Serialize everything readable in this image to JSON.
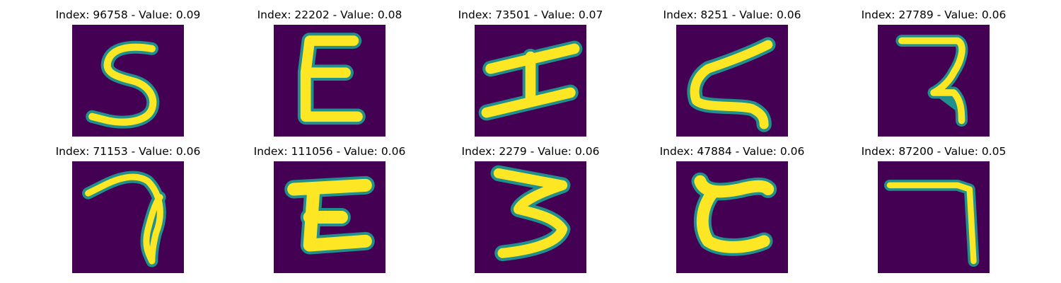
{
  "panels": [
    {
      "title": "Index: 96758 - Value: 0.09",
      "glyph": "five-like"
    },
    {
      "title": "Index: 22202 - Value: 0.08",
      "glyph": "epsilon-like"
    },
    {
      "title": "Index: 73501 - Value: 0.07",
      "glyph": "i-beam-like"
    },
    {
      "title": "Index: 8251 - Value: 0.06",
      "glyph": "z-like"
    },
    {
      "title": "Index: 27789 - Value: 0.06",
      "glyph": "reversed-r-like"
    },
    {
      "title": "Index: 71153 - Value: 0.06",
      "glyph": "seven-loop-like"
    },
    {
      "title": "Index: 111056 - Value: 0.06",
      "glyph": "z-block-like"
    },
    {
      "title": "Index: 2279 - Value: 0.06",
      "glyph": "three-like"
    },
    {
      "title": "Index: 47884 - Value: 0.06",
      "glyph": "c-like"
    },
    {
      "title": "Index: 87200 - Value: 0.05",
      "glyph": "seven-angle-like"
    }
  ],
  "colors": {
    "background": "#440154",
    "edge": "#21908d",
    "mid": "#5ec962",
    "core": "#fde725"
  }
}
